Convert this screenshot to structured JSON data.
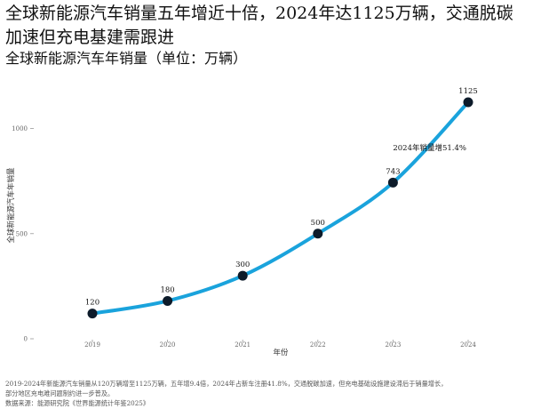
{
  "header": {
    "title": "全球新能源汽车销量五年增近十倍，2024年达1125万辆，交通脱碳加速但充电基建需跟进",
    "subtitle": "全球新能源汽车年销量（单位：万辆）"
  },
  "chart_data": {
    "type": "line",
    "title": "全球新能源汽车年销量（单位：万辆）",
    "xlabel": "年份",
    "ylabel": "全球新能源汽车年销量",
    "categories": [
      "2019",
      "2020",
      "2021",
      "2022",
      "2023",
      "2024"
    ],
    "series": [
      {
        "values": [
          120,
          180,
          300,
          500,
          743,
          1125
        ]
      }
    ],
    "data_labels": [
      "120",
      "180",
      "300",
      "500",
      "743",
      "1125"
    ],
    "y_ticks": [
      0,
      500,
      1000
    ],
    "ylim": [
      0,
      1180
    ],
    "grid": false,
    "legend": "none",
    "annotation": {
      "text": "2024年销量增51.4%",
      "x": "2024",
      "y": 1125
    },
    "colors": {
      "line": "#1aa3dc",
      "marker": "#0d1b2a",
      "axis_text": "#666666"
    }
  },
  "footer": {
    "note_line1": "2019-2024年新能源汽车销量从120万辆增至1125万辆，五年增9.4倍，2024年占新车注册41.8%，交通脱碳加速，但充电基础设施建设滞后于销量增长，",
    "note_line2": "部分地区充电难问题制约进一步普及。",
    "source": "数据来源：能源研究院《世界能源统计年鉴2025》"
  }
}
